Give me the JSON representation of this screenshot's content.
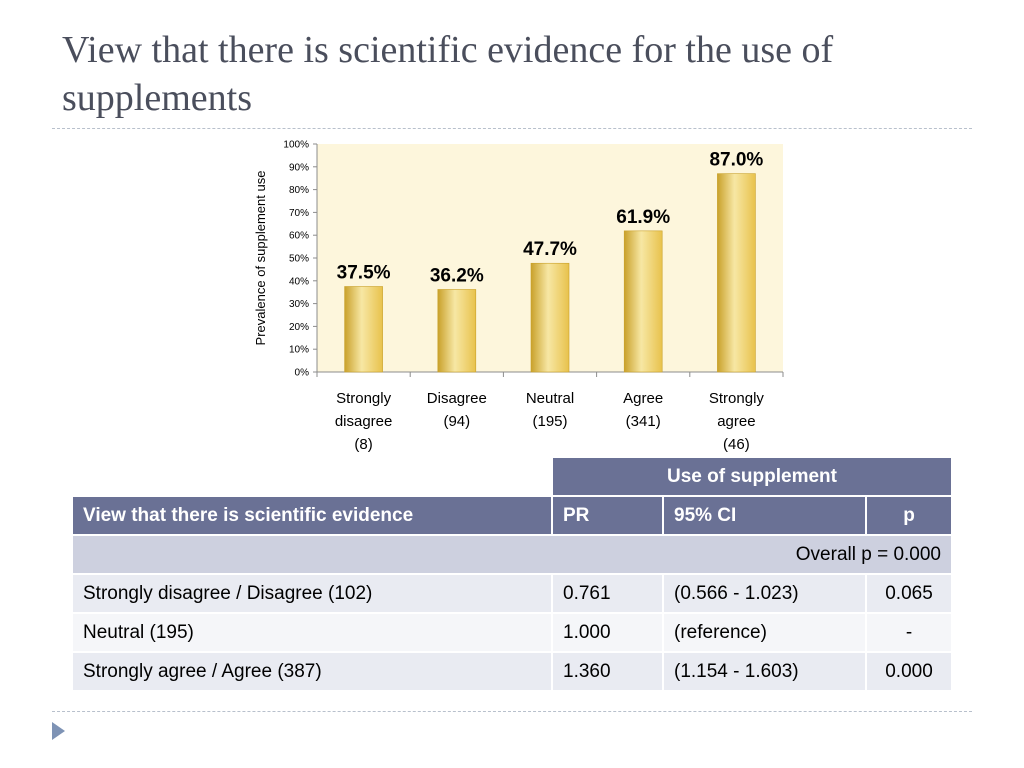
{
  "slide": {
    "title": "View that there is scientific evidence for the use of supplements"
  },
  "chart_data": {
    "type": "bar",
    "categories": [
      [
        "Strongly",
        "disagree",
        "(8)"
      ],
      [
        "Disagree",
        "(94)"
      ],
      [
        "Neutral",
        "(195)"
      ],
      [
        "Agree",
        "(341)"
      ],
      [
        "Strongly",
        "agree",
        "(46)"
      ]
    ],
    "values": [
      37.5,
      36.2,
      47.7,
      61.9,
      87.0
    ],
    "data_labels": [
      "37.5%",
      "36.2%",
      "47.7%",
      "61.9%",
      "87.0%"
    ],
    "title": "",
    "xlabel": "",
    "ylabel": "Prevalence of supplement use",
    "ylim": [
      0,
      100
    ],
    "yticks": [
      "0%",
      "10%",
      "20%",
      "30%",
      "40%",
      "50%",
      "60%",
      "70%",
      "80%",
      "90%",
      "100%"
    ],
    "grid": false,
    "legend": "none",
    "colors": {
      "plot_bg": "#fdf6dc",
      "bar": "#e8c24c",
      "bar_light": "#f7e7a4",
      "bar_dark": "#c9a12b"
    }
  },
  "table": {
    "group_header": "Use of supplement",
    "columns": [
      "View that there is scientific evidence",
      "PR",
      "95% CI",
      "p"
    ],
    "overall": "Overall p = 0.000",
    "rows": [
      [
        "Strongly disagree / Disagree (102)",
        "0.761",
        "(0.566 - 1.023)",
        "0.065"
      ],
      [
        "Neutral (195)",
        "1.000",
        "(reference)",
        "-"
      ],
      [
        "Strongly agree / Agree (387)",
        "1.360",
        "(1.154 - 1.603)",
        "0.000"
      ]
    ],
    "colors": {
      "header": "#6a7195",
      "band": "#cdd0df",
      "row_a": "#e9ebf2",
      "row_b": "#f5f6f9"
    }
  }
}
